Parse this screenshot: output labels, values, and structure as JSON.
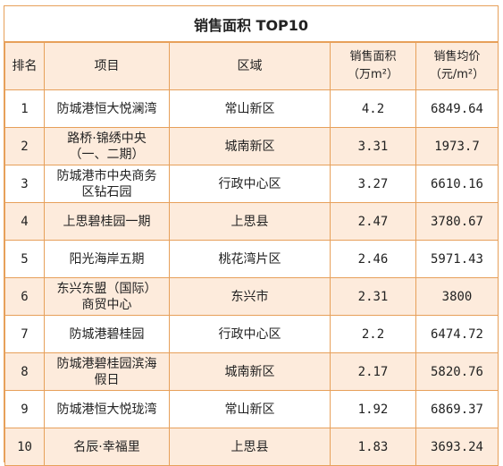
{
  "title": "销售面积 TOP10",
  "headers": {
    "rank": "排名",
    "project": "项目",
    "district": "区域",
    "area_line1": "销售面积",
    "area_line2": "（万m²）",
    "price_line1": "销售均价",
    "price_line2": "（元/m²）"
  },
  "rows": [
    {
      "rank": "1",
      "project": [
        "防城港恒大悦澜湾"
      ],
      "district": "常山新区",
      "area": "4.2",
      "price": "6849.64"
    },
    {
      "rank": "2",
      "project": [
        "路桥·锦绣中央",
        "（一、二期）"
      ],
      "district": "城南新区",
      "area": "3.31",
      "price": "1973.7"
    },
    {
      "rank": "3",
      "project": [
        "防城港市中央商务",
        "区钻石园"
      ],
      "district": "行政中心区",
      "area": "3.27",
      "price": "6610.16"
    },
    {
      "rank": "4",
      "project": [
        "上思碧桂园一期"
      ],
      "district": "上思县",
      "area": "2.47",
      "price": "3780.67"
    },
    {
      "rank": "5",
      "project": [
        "阳光海岸五期"
      ],
      "district": "桃花湾片区",
      "area": "2.46",
      "price": "5971.43"
    },
    {
      "rank": "6",
      "project": [
        "东兴东盟（国际）",
        "商贸中心"
      ],
      "district": "东兴市",
      "area": "2.31",
      "price": "3800"
    },
    {
      "rank": "7",
      "project": [
        "防城港碧桂园"
      ],
      "district": "行政中心区",
      "area": "2.2",
      "price": "6474.72"
    },
    {
      "rank": "8",
      "project": [
        "防城港碧桂园滨海",
        "假日"
      ],
      "district": "城南新区",
      "area": "2.17",
      "price": "5820.76"
    },
    {
      "rank": "9",
      "project": [
        "防城港恒大悦珑湾"
      ],
      "district": "常山新区",
      "area": "1.92",
      "price": "6869.37"
    },
    {
      "rank": "10",
      "project": [
        "名辰·幸福里"
      ],
      "district": "上思县",
      "area": "1.83",
      "price": "3693.24"
    }
  ]
}
